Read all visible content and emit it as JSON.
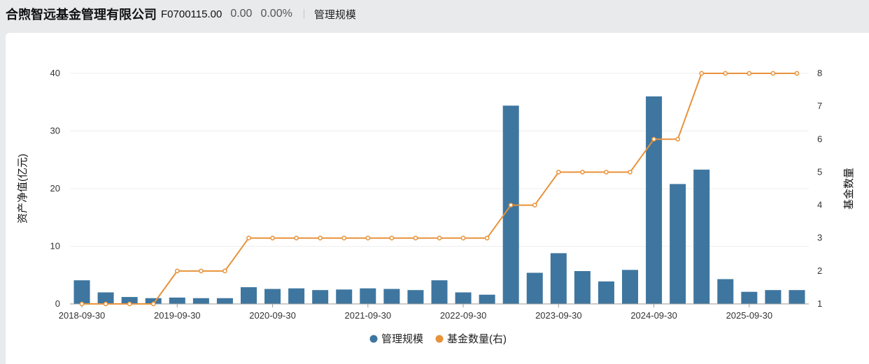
{
  "header": {
    "company": "合煦智远基金管理有限公司",
    "code": "F0700115.00",
    "value": "0.00",
    "change_pct": "0.00%",
    "tab": "管理规模"
  },
  "colors": {
    "bar": "#3e76a0",
    "line": "#e8923a",
    "grid": "#eeeeee"
  },
  "chart_data": {
    "type": "bar",
    "title": "",
    "x_tick_labels": [
      "2018-09-30",
      "2019-09-30",
      "2020-09-30",
      "2021-09-30",
      "2022-09-30",
      "2023-09-30",
      "2024-09-30",
      "2025-09-30"
    ],
    "ylabel_left": "资产净值(亿元)",
    "ylabel_right": "基金数量",
    "ylim_left": [
      0,
      40
    ],
    "yticks_left": [
      0,
      10,
      20,
      30,
      40
    ],
    "ylim_right": [
      1,
      8
    ],
    "yticks_right": [
      1,
      2,
      3,
      4,
      5,
      6,
      7,
      8
    ],
    "legend": {
      "position": "bottom-center"
    },
    "series": [
      {
        "name": "管理规模",
        "type": "bar",
        "axis": "left",
        "values": [
          4.1,
          2.0,
          1.2,
          1.0,
          1.1,
          1.0,
          1.0,
          2.9,
          2.6,
          2.7,
          2.4,
          2.5,
          2.7,
          2.6,
          2.4,
          4.1,
          2.0,
          1.6,
          34.4,
          5.4,
          8.8,
          5.7,
          3.9,
          5.9,
          36.0,
          20.8,
          23.3,
          4.3,
          2.1,
          2.4,
          2.4
        ]
      },
      {
        "name": "基金数量(右)",
        "type": "line",
        "axis": "right",
        "values": [
          1,
          1,
          1,
          1,
          2,
          2,
          2,
          3,
          3,
          3,
          3,
          3,
          3,
          3,
          3,
          3,
          3,
          3,
          4,
          4,
          5,
          5,
          5,
          5,
          6,
          6,
          8,
          8,
          8,
          8,
          8
        ]
      }
    ]
  }
}
